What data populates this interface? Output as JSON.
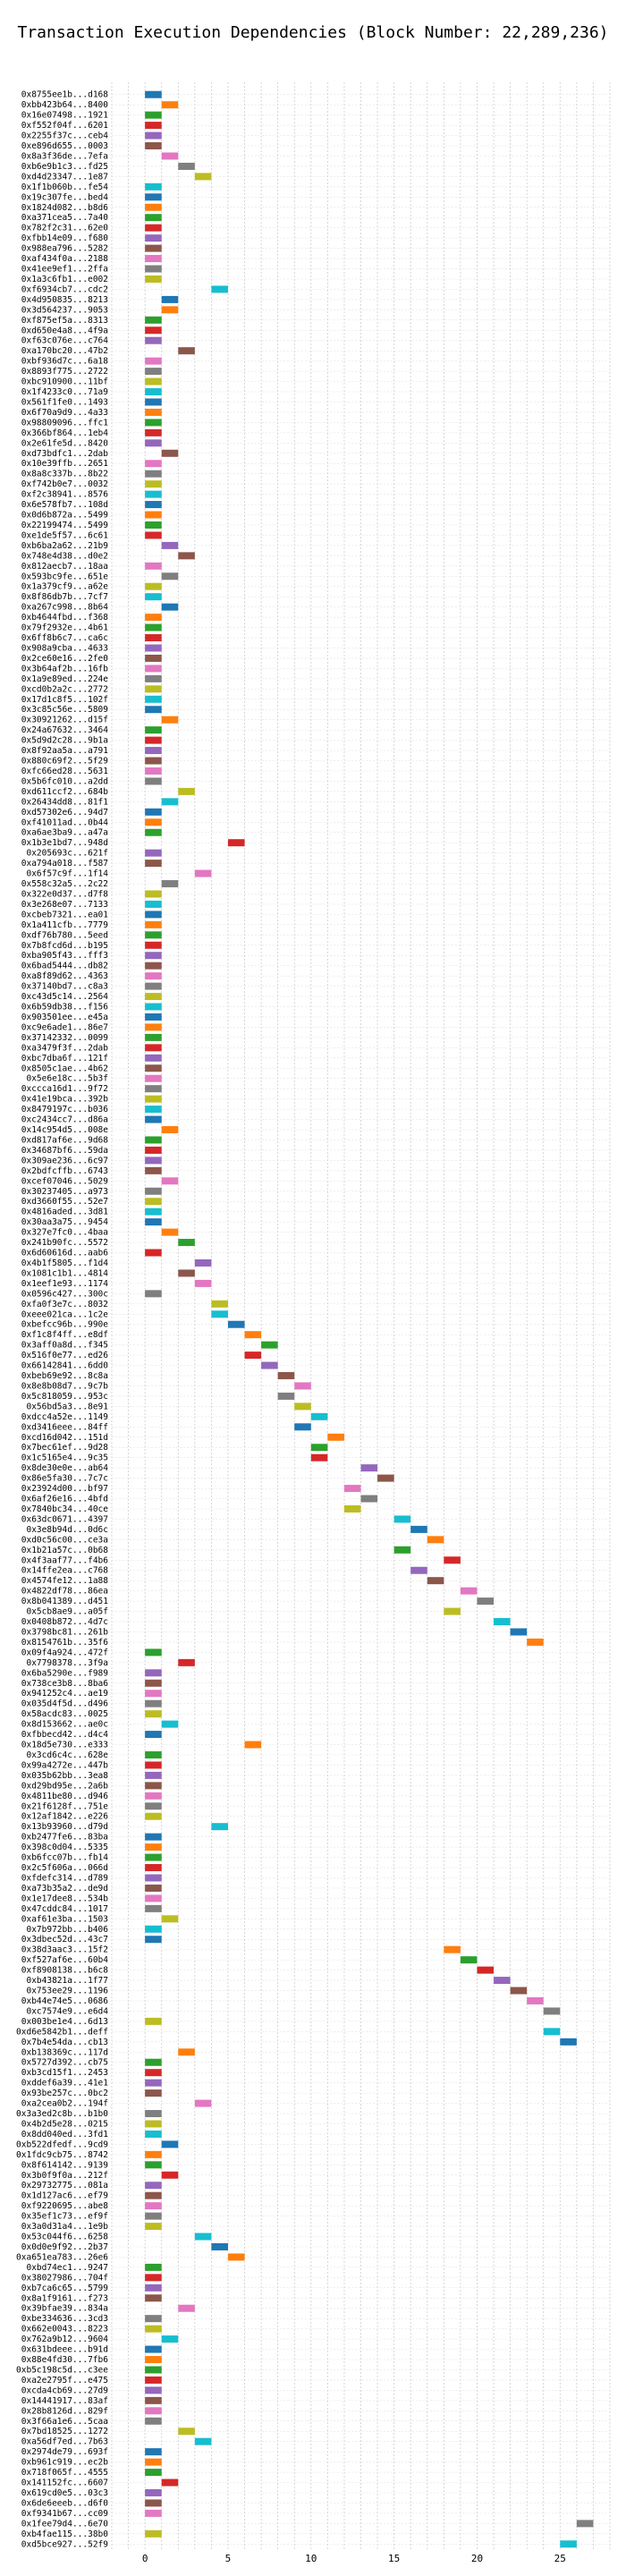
{
  "chart_data": {
    "type": "bar",
    "title": "Transaction Execution Dependencies (Block Number: 22,289,236)",
    "xlabel": "",
    "ylabel": "",
    "xlim": [
      -2,
      28
    ],
    "xticks": [
      0,
      5,
      10,
      15,
      20,
      25
    ],
    "grid": true,
    "palette": [
      "#1f77b4",
      "#ff7f0e",
      "#2ca02c",
      "#d62728",
      "#9467bd",
      "#8c564b",
      "#e377c2",
      "#7f7f7f",
      "#bcbd22",
      "#17becf"
    ],
    "bar_width": 1,
    "transactions": [
      {
        "hash": "0x8755ee1b...d168",
        "start": 0
      },
      {
        "hash": "0xbb423b64...8400",
        "start": 1
      },
      {
        "hash": "0x16e07498...1921",
        "start": 0
      },
      {
        "hash": "0xf552f04f...6201",
        "start": 0
      },
      {
        "hash": "0x2255f37c...ceb4",
        "start": 0
      },
      {
        "hash": "0xe896d655...0003",
        "start": 0
      },
      {
        "hash": "0x8a3f36de...7efa",
        "start": 1
      },
      {
        "hash": "0xb6e9b1c3...fd25",
        "start": 2
      },
      {
        "hash": "0xd4d23347...1e87",
        "start": 3
      },
      {
        "hash": "0x1f1b060b...fe54",
        "start": 0
      },
      {
        "hash": "0x19c307fe...bed4",
        "start": 0
      },
      {
        "hash": "0x1824d082...b8d6",
        "start": 0
      },
      {
        "hash": "0xa371cea5...7a40",
        "start": 0
      },
      {
        "hash": "0x782f2c31...62e0",
        "start": 0
      },
      {
        "hash": "0xfbb14e09...f680",
        "start": 0
      },
      {
        "hash": "0x988ea796...5282",
        "start": 0
      },
      {
        "hash": "0xaf434f0a...2188",
        "start": 0
      },
      {
        "hash": "0x41ee9ef1...2ffa",
        "start": 0
      },
      {
        "hash": "0x1a3c6fb1...e002",
        "start": 0
      },
      {
        "hash": "0xf6934cb7...cdc2",
        "start": 4
      },
      {
        "hash": "0x4d950835...8213",
        "start": 1
      },
      {
        "hash": "0x3d564237...9053",
        "start": 1
      },
      {
        "hash": "0xf875ef5a...8313",
        "start": 0
      },
      {
        "hash": "0xd650e4a8...4f9a",
        "start": 0
      },
      {
        "hash": "0xf63c076e...c764",
        "start": 0
      },
      {
        "hash": "0xa170bc20...47b2",
        "start": 2
      },
      {
        "hash": "0xbf936d7c...6a18",
        "start": 0
      },
      {
        "hash": "0x8893f775...2722",
        "start": 0
      },
      {
        "hash": "0xbc910900...11bf",
        "start": 0
      },
      {
        "hash": "0x1f4233c0...71a9",
        "start": 0
      },
      {
        "hash": "0x561f1fe0...1493",
        "start": 0
      },
      {
        "hash": "0x6f70a9d9...4a33",
        "start": 0
      },
      {
        "hash": "0x98809096...ffc1",
        "start": 0
      },
      {
        "hash": "0x366bf864...1eb4",
        "start": 0
      },
      {
        "hash": "0x2e61fe5d...8420",
        "start": 0
      },
      {
        "hash": "0xd73bdfc1...2dab",
        "start": 1
      },
      {
        "hash": "0x10e39ffb...2651",
        "start": 0
      },
      {
        "hash": "0x8a8c337b...8b22",
        "start": 0
      },
      {
        "hash": "0xf742b0e7...0032",
        "start": 0
      },
      {
        "hash": "0xf2c38941...8576",
        "start": 0
      },
      {
        "hash": "0x6e578fb7...108d",
        "start": 0
      },
      {
        "hash": "0x0d6b872a...5499",
        "start": 0
      },
      {
        "hash": "0x22199474...5499",
        "start": 0
      },
      {
        "hash": "0xe1de5f57...6c61",
        "start": 0
      },
      {
        "hash": "0xb6ba2a62...21b9",
        "start": 1
      },
      {
        "hash": "0x748e4d38...d0e2",
        "start": 2
      },
      {
        "hash": "0x812aecb7...18aa",
        "start": 0
      },
      {
        "hash": "0x593bc9fe...651e",
        "start": 1
      },
      {
        "hash": "0x1a379cf9...a62e",
        "start": 0
      },
      {
        "hash": "0x8f86db7b...7cf7",
        "start": 0
      },
      {
        "hash": "0xa267c998...8b64",
        "start": 1
      },
      {
        "hash": "0xb4644fbd...f368",
        "start": 0
      },
      {
        "hash": "0x79f2932e...4b61",
        "start": 0
      },
      {
        "hash": "0x6ff8b6c7...ca6c",
        "start": 0
      },
      {
        "hash": "0x908a9cba...4633",
        "start": 0
      },
      {
        "hash": "0x2ce60e16...2fe0",
        "start": 0
      },
      {
        "hash": "0x3b64af2b...16fb",
        "start": 0
      },
      {
        "hash": "0x1a9e89ed...224e",
        "start": 0
      },
      {
        "hash": "0xcd0b2a2c...2772",
        "start": 0
      },
      {
        "hash": "0x17d1c8f5...102f",
        "start": 0
      },
      {
        "hash": "0x3c85c56e...5809",
        "start": 0
      },
      {
        "hash": "0x30921262...d15f",
        "start": 1
      },
      {
        "hash": "0x24a67632...3464",
        "start": 0
      },
      {
        "hash": "0x5d9d2c28...9b1a",
        "start": 0
      },
      {
        "hash": "0x8f92aa5a...a791",
        "start": 0
      },
      {
        "hash": "0x880c69f2...5f29",
        "start": 0
      },
      {
        "hash": "0xfc66ed28...5631",
        "start": 0
      },
      {
        "hash": "0x5b6fc010...a2dd",
        "start": 0
      },
      {
        "hash": "0xd611ccf2...684b",
        "start": 2
      },
      {
        "hash": "0x26434dd8...81f1",
        "start": 1
      },
      {
        "hash": "0xd57302e6...94d7",
        "start": 0
      },
      {
        "hash": "0xf41011ad...0b44",
        "start": 0
      },
      {
        "hash": "0xa6ae3ba9...a47a",
        "start": 0
      },
      {
        "hash": "0x1b3e1bd7...948d",
        "start": 5
      },
      {
        "hash": "0x205693c...621f",
        "start": 0
      },
      {
        "hash": "0xa794a018...f587",
        "start": 0
      },
      {
        "hash": "0x6f57c9f...1f14",
        "start": 3
      },
      {
        "hash": "0x558c32a5...2c22",
        "start": 1
      },
      {
        "hash": "0x322e0d37...d7f8",
        "start": 0
      },
      {
        "hash": "0x3e268e07...7133",
        "start": 0
      },
      {
        "hash": "0xcbeb7321...ea01",
        "start": 0
      },
      {
        "hash": "0x1a411cfb...7779",
        "start": 0
      },
      {
        "hash": "0xdf76b780...5eed",
        "start": 0
      },
      {
        "hash": "0x7b8fcd6d...b195",
        "start": 0
      },
      {
        "hash": "0xba905f43...fff3",
        "start": 0
      },
      {
        "hash": "0x6bad5444...db82",
        "start": 0
      },
      {
        "hash": "0xa8f89d62...4363",
        "start": 0
      },
      {
        "hash": "0x37140bd7...c8a3",
        "start": 0
      },
      {
        "hash": "0xc43d5c14...2564",
        "start": 0
      },
      {
        "hash": "0x6b59db38...f156",
        "start": 0
      },
      {
        "hash": "0x903501ee...e45a",
        "start": 0
      },
      {
        "hash": "0xc9e6ade1...86e7",
        "start": 0
      },
      {
        "hash": "0x37142332...0099",
        "start": 0
      },
      {
        "hash": "0xa3479f3f...2dab",
        "start": 0
      },
      {
        "hash": "0xbc7dba6f...121f",
        "start": 0
      },
      {
        "hash": "0x8505c1ae...4b62",
        "start": 0
      },
      {
        "hash": "0x5e6e18c...5b3f",
        "start": 0
      },
      {
        "hash": "0xccca16d1...9f72",
        "start": 0
      },
      {
        "hash": "0x41e19bca...392b",
        "start": 0
      },
      {
        "hash": "0x8479197c...b036",
        "start": 0
      },
      {
        "hash": "0xc2434cc7...d86a",
        "start": 0
      },
      {
        "hash": "0x14c954d5...008e",
        "start": 1
      },
      {
        "hash": "0xd817af6e...9d68",
        "start": 0
      },
      {
        "hash": "0x34687bf6...59da",
        "start": 0
      },
      {
        "hash": "0x309ae236...6c97",
        "start": 0
      },
      {
        "hash": "0x2bdfcffb...6743",
        "start": 0
      },
      {
        "hash": "0xcef07046...5029",
        "start": 1
      },
      {
        "hash": "0x30237405...a973",
        "start": 0
      },
      {
        "hash": "0xd3660f55...52e7",
        "start": 0
      },
      {
        "hash": "0x4816aded...3d81",
        "start": 0
      },
      {
        "hash": "0x30aa3a75...9454",
        "start": 0
      },
      {
        "hash": "0x327e7fc0...4baa",
        "start": 1
      },
      {
        "hash": "0x241b90fc...5572",
        "start": 2
      },
      {
        "hash": "0x6d60616d...aab6",
        "start": 0
      },
      {
        "hash": "0x4b1f5805...f1d4",
        "start": 3
      },
      {
        "hash": "0x1081c1b1...4814",
        "start": 2
      },
      {
        "hash": "0x1eef1e93...1174",
        "start": 3
      },
      {
        "hash": "0x0596c427...300c",
        "start": 0
      },
      {
        "hash": "0xfa0f3e7c...8032",
        "start": 4
      },
      {
        "hash": "0xeee021ca...1c2e",
        "start": 4
      },
      {
        "hash": "0xbefcc96b...990e",
        "start": 5
      },
      {
        "hash": "0xf1c8f4ff...e8df",
        "start": 6
      },
      {
        "hash": "0x3aff0a8d...f345",
        "start": 7
      },
      {
        "hash": "0x516f0e77...ed26",
        "start": 6
      },
      {
        "hash": "0x66142841...6dd0",
        "start": 7
      },
      {
        "hash": "0xbeb69e92...8c8a",
        "start": 8
      },
      {
        "hash": "0x8e8b08d7...9c7b",
        "start": 9
      },
      {
        "hash": "0x5c818059...953c",
        "start": 8
      },
      {
        "hash": "0x56bd5a3...8e91",
        "start": 9
      },
      {
        "hash": "0xdcc4a52e...1149",
        "start": 10
      },
      {
        "hash": "0xd3416eee...84ff",
        "start": 9
      },
      {
        "hash": "0xcd16d042...151d",
        "start": 11
      },
      {
        "hash": "0x7bec61ef...9d28",
        "start": 10
      },
      {
        "hash": "0x1c5165e4...9c35",
        "start": 10
      },
      {
        "hash": "0x8de30e0e...ab64",
        "start": 13
      },
      {
        "hash": "0x86e5fa30...7c7c",
        "start": 14
      },
      {
        "hash": "0x23924d00...bf97",
        "start": 12
      },
      {
        "hash": "0x6af26e16...4bfd",
        "start": 13
      },
      {
        "hash": "0x7840bc34...40ce",
        "start": 12
      },
      {
        "hash": "0x63dc0671...4397",
        "start": 15
      },
      {
        "hash": "0x3e8b94d...0d6c",
        "start": 16
      },
      {
        "hash": "0xd0c56c00...ce3a",
        "start": 17
      },
      {
        "hash": "0x1b21a57c...0b68",
        "start": 15
      },
      {
        "hash": "0x4f3aaf77...f4b6",
        "start": 18
      },
      {
        "hash": "0x14ffe2ea...c768",
        "start": 16
      },
      {
        "hash": "0x4574fe12...1a88",
        "start": 17
      },
      {
        "hash": "0x4822df78...86ea",
        "start": 19
      },
      {
        "hash": "0x8b041389...d451",
        "start": 20
      },
      {
        "hash": "0x5cb8ae9...a05f",
        "start": 18
      },
      {
        "hash": "0x0408b872...4d7c",
        "start": 21
      },
      {
        "hash": "0x3798bc81...261b",
        "start": 22
      },
      {
        "hash": "0x8154761b...35f6",
        "start": 23
      },
      {
        "hash": "0x09f4a924...472f",
        "start": 0
      },
      {
        "hash": "0x7798378...3f9a",
        "start": 2
      },
      {
        "hash": "0x6ba5290e...f989",
        "start": 0
      },
      {
        "hash": "0x738ce3b8...8ba6",
        "start": 0
      },
      {
        "hash": "0x941252c4...ae19",
        "start": 0
      },
      {
        "hash": "0x035d4f5d...d496",
        "start": 0
      },
      {
        "hash": "0x58acdc83...0025",
        "start": 0
      },
      {
        "hash": "0x8d153662...ae0c",
        "start": 1
      },
      {
        "hash": "0xfbbecd42...d4c4",
        "start": 0
      },
      {
        "hash": "0x18d5e730...e333",
        "start": 6
      },
      {
        "hash": "0x3cd6c4c...628e",
        "start": 0
      },
      {
        "hash": "0x99a4272e...447b",
        "start": 0
      },
      {
        "hash": "0x035b62bb...3ea8",
        "start": 0
      },
      {
        "hash": "0xd29bd95e...2a6b",
        "start": 0
      },
      {
        "hash": "0x4811be80...d946",
        "start": 0
      },
      {
        "hash": "0x21f6128f...751e",
        "start": 0
      },
      {
        "hash": "0x12af1842...e226",
        "start": 0
      },
      {
        "hash": "0x13b93960...d79d",
        "start": 4
      },
      {
        "hash": "0xb2477fe6...83ba",
        "start": 0
      },
      {
        "hash": "0x398c0d04...5335",
        "start": 0
      },
      {
        "hash": "0xb6fcc07b...fb14",
        "start": 0
      },
      {
        "hash": "0x2c5f606a...066d",
        "start": 0
      },
      {
        "hash": "0xfdefc314...d789",
        "start": 0
      },
      {
        "hash": "0xa73b35a2...de9d",
        "start": 0
      },
      {
        "hash": "0x1e17dee8...534b",
        "start": 0
      },
      {
        "hash": "0x47cddc84...1017",
        "start": 0
      },
      {
        "hash": "0xaf61e3ba...1503",
        "start": 1
      },
      {
        "hash": "0x7b972bb...b406",
        "start": 0
      },
      {
        "hash": "0x3dbec52d...43c7",
        "start": 0
      },
      {
        "hash": "0x38d3aac3...15f2",
        "start": 18
      },
      {
        "hash": "0xf527af6e...60b4",
        "start": 19
      },
      {
        "hash": "0xf8908138...b6c8",
        "start": 20
      },
      {
        "hash": "0xb43821a...1f77",
        "start": 21
      },
      {
        "hash": "0x753ee29...1196",
        "start": 22
      },
      {
        "hash": "0xb44e74e5...0686",
        "start": 23
      },
      {
        "hash": "0xc7574e9...e6d4",
        "start": 24
      },
      {
        "hash": "0x003be1e4...6d13",
        "start": 0
      },
      {
        "hash": "0xd6e5842b1...deff",
        "start": 24
      },
      {
        "hash": "0x7b4e54da...cb13",
        "start": 25
      },
      {
        "hash": "0xb138369c...117d",
        "start": 2
      },
      {
        "hash": "0x5727d392...cb75",
        "start": 0
      },
      {
        "hash": "0xb3cd15f1...2453",
        "start": 0
      },
      {
        "hash": "0xddef6a39...41e1",
        "start": 0
      },
      {
        "hash": "0x93be257c...0bc2",
        "start": 0
      },
      {
        "hash": "0xa2cea0b2...194f",
        "start": 3
      },
      {
        "hash": "0x3a3ed2c8b...b1b0",
        "start": 0
      },
      {
        "hash": "0x4b2d5e28...0215",
        "start": 0
      },
      {
        "hash": "0x8dd040ed...3fd1",
        "start": 0
      },
      {
        "hash": "0xb522dfedf...9cd9",
        "start": 1
      },
      {
        "hash": "0x1fdc9cb75...8742",
        "start": 0
      },
      {
        "hash": "0x8f614142...9139",
        "start": 0
      },
      {
        "hash": "0x3b0f9f0a...212f",
        "start": 1
      },
      {
        "hash": "0x29732775...081a",
        "start": 0
      },
      {
        "hash": "0x1d127ac6...ef79",
        "start": 0
      },
      {
        "hash": "0xf9220695...abe8",
        "start": 0
      },
      {
        "hash": "0x35ef1c73...ef9f",
        "start": 0
      },
      {
        "hash": "0x3a0d31a4...1e9b",
        "start": 0
      },
      {
        "hash": "0x53c044f6...6258",
        "start": 3
      },
      {
        "hash": "0x0d0e9f92...2b37",
        "start": 4
      },
      {
        "hash": "0xa651ea783...26e6",
        "start": 5
      },
      {
        "hash": "0xbd74ec1...9247",
        "start": 0
      },
      {
        "hash": "0x38027986...704f",
        "start": 0
      },
      {
        "hash": "0xb7ca6c65...5799",
        "start": 0
      },
      {
        "hash": "0x8a1f9161...f273",
        "start": 0
      },
      {
        "hash": "0x39bfae39...834a",
        "start": 2
      },
      {
        "hash": "0xbe334636...3cd3",
        "start": 0
      },
      {
        "hash": "0x662e0043...8223",
        "start": 0
      },
      {
        "hash": "0x762a9b12...9604",
        "start": 1
      },
      {
        "hash": "0x631bdeee...b91d",
        "start": 0
      },
      {
        "hash": "0x88e4fd30...7fb6",
        "start": 0
      },
      {
        "hash": "0xb5c198c5d...c3ee",
        "start": 0
      },
      {
        "hash": "0xa2e2795f...e475",
        "start": 0
      },
      {
        "hash": "0xcda4cb69...27d9",
        "start": 0
      },
      {
        "hash": "0x14441917...83af",
        "start": 0
      },
      {
        "hash": "0x28b8126d...829f",
        "start": 0
      },
      {
        "hash": "0x3f66a1e6...5caa",
        "start": 0
      },
      {
        "hash": "0x7bd18525...1272",
        "start": 2
      },
      {
        "hash": "0xa56df7ed...7b63",
        "start": 3
      },
      {
        "hash": "0x2974de79...693f",
        "start": 0
      },
      {
        "hash": "0xb961c919...ec2b",
        "start": 0
      },
      {
        "hash": "0x718f065f...4555",
        "start": 0
      },
      {
        "hash": "0x141152fc...6607",
        "start": 1
      },
      {
        "hash": "0x619cd0e5...03c3",
        "start": 0
      },
      {
        "hash": "0x6de6eeeb...d6f0",
        "start": 0
      },
      {
        "hash": "0xf9341b67...cc09",
        "start": 0
      },
      {
        "hash": "0x1fee79d4...6e70",
        "start": 26
      },
      {
        "hash": "0xb4fae115...38b0",
        "start": 0
      },
      {
        "hash": "0xd5bce927...52f9",
        "start": 25
      }
    ]
  }
}
